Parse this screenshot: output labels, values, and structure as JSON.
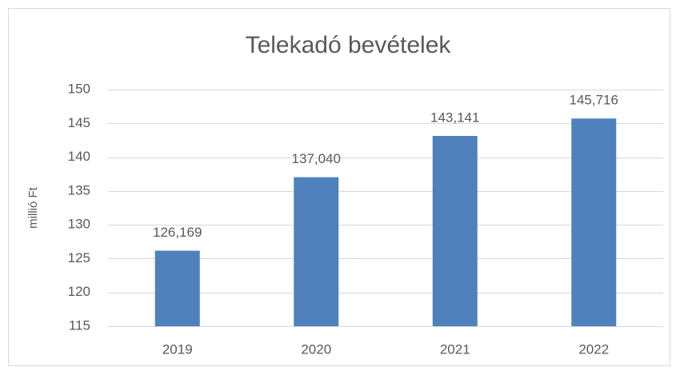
{
  "chart_data": {
    "type": "bar",
    "title": "Telekadó bevételek",
    "y_label": "millió Ft",
    "categories": [
      "2019",
      "2020",
      "2021",
      "2022"
    ],
    "values": [
      126.169,
      137.04,
      143.141,
      145.716
    ],
    "value_labels": [
      "126,169",
      "137,040",
      "143,141",
      "145,716"
    ],
    "color": "#4f81bd",
    "ylim": [
      115,
      150
    ],
    "yticks": [
      115,
      120,
      125,
      130,
      135,
      140,
      145,
      150
    ],
    "grid": true
  }
}
